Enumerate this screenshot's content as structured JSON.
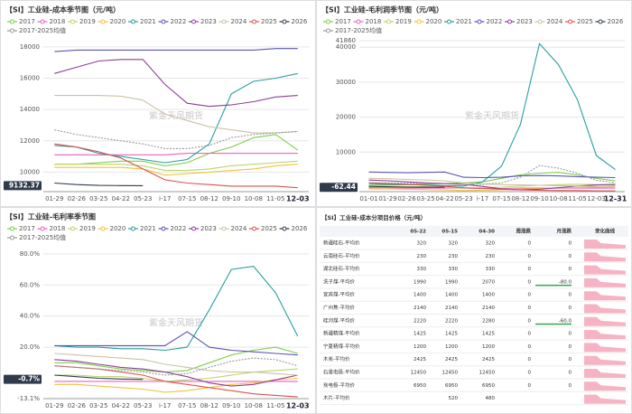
{
  "chart_data": [
    {
      "type": "line",
      "title": "【SI】工业硅-成本季节图（元/吨）",
      "watermark": "紫金天风期货",
      "categories": [
        "01-29",
        "02-26",
        "03-25",
        "04-22",
        "05-23",
        "i-17",
        "07-15",
        "08-12",
        "09-10",
        "10-08",
        "11-05",
        "12-03"
      ],
      "ylim": [
        8750,
        18400
      ],
      "yticks": [
        10000,
        12000,
        14000,
        16000,
        18000
      ],
      "grid": true,
      "current": {
        "value": 9132.37,
        "label": "9132.37"
      },
      "series": [
        {
          "name": "2017",
          "color": "#7ccf4a",
          "values": [
            10500,
            10500,
            10600,
            10700,
            10700,
            10400,
            10600,
            11200,
            11600,
            12200,
            12400,
            11400
          ]
        },
        {
          "name": "2018",
          "color": "#ee5fc0",
          "values": [
            11100,
            11100,
            11100,
            11100,
            11100,
            11100,
            11200,
            11200,
            11200,
            11200,
            11200,
            11200
          ]
        },
        {
          "name": "2019",
          "color": "#b9d66a",
          "values": [
            10500,
            10500,
            10500,
            10500,
            10400,
            10100,
            10100,
            10200,
            10400,
            10500,
            10600,
            10700
          ]
        },
        {
          "name": "2020",
          "color": "#f2c23c",
          "values": [
            10300,
            10300,
            10300,
            10300,
            10200,
            9800,
            9900,
            10000,
            10100,
            10200,
            10400,
            10500
          ]
        },
        {
          "name": "2021",
          "color": "#2a9d9f",
          "values": [
            11700,
            11600,
            11200,
            11000,
            10800,
            10600,
            10800,
            11800,
            15000,
            15800,
            16000,
            16300
          ]
        },
        {
          "name": "2022",
          "color": "#5a55b5",
          "values": [
            17700,
            17800,
            17800,
            17800,
            17800,
            17800,
            17800,
            17800,
            17800,
            17800,
            17900,
            17900
          ]
        },
        {
          "name": "2023",
          "color": "#8a3f96",
          "values": [
            16300,
            16700,
            17100,
            17200,
            17200,
            15600,
            14400,
            14200,
            14300,
            14500,
            14800,
            14900
          ]
        },
        {
          "name": "2024",
          "color": "#cbc3a3",
          "values": [
            14900,
            14900,
            14900,
            14850,
            14600,
            13700,
            13300,
            12900,
            12700,
            12500,
            12500,
            12600
          ]
        },
        {
          "name": "2025",
          "color": "#d9534f",
          "values": [
            11800,
            11600,
            11300,
            10900,
            10200,
            9500,
            9300,
            9200,
            9100,
            9100,
            9100,
            9000
          ]
        },
        {
          "name": "2026",
          "color": "#2f3b4c",
          "values": [
            9300,
            9200,
            9150,
            9140,
            9132.37,
            null,
            null,
            null,
            null,
            null,
            null,
            null
          ]
        },
        {
          "name": "2017-2025均值",
          "color": "#9a9a9a",
          "dashed": true,
          "values": [
            12700,
            12400,
            12200,
            12000,
            11800,
            11500,
            11500,
            11700,
            12200,
            12400,
            12500,
            12600
          ]
        }
      ]
    },
    {
      "type": "line",
      "title": "【SI】工业硅-毛利润季节图（元/吨）",
      "watermark": "紫金天风期货",
      "categories": [
        "01-01",
        "01-29",
        "02-26",
        "03-25",
        "04-22",
        "05-23",
        "i-17",
        "07-15",
        "08-12",
        "09-10",
        "10-08",
        "11-05",
        "12-03",
        "12-31"
      ],
      "ylim": [
        -1300,
        41860
      ],
      "yticks": [
        10000,
        20000,
        30000,
        40000,
        41860
      ],
      "grid": true,
      "current": {
        "value": -62.44,
        "label": "-62.44"
      },
      "series": [
        {
          "name": "2017",
          "color": "#7ccf4a",
          "values": [
            500,
            600,
            700,
            900,
            1000,
            1200,
            1500,
            2500,
            3500,
            4000,
            4200,
            3500,
            2500,
            1800
          ]
        },
        {
          "name": "2018",
          "color": "#ee5fc0",
          "values": [
            -200,
            -200,
            -300,
            -300,
            -300,
            -300,
            -400,
            -400,
            -300,
            -300,
            -300,
            -300,
            -300,
            -300
          ]
        },
        {
          "name": "2019",
          "color": "#b9d66a",
          "values": [
            200,
            200,
            100,
            100,
            -100,
            -300,
            -200,
            0,
            300,
            500,
            700,
            800,
            700,
            500
          ]
        },
        {
          "name": "2020",
          "color": "#f2c23c",
          "values": [
            -500,
            -500,
            -600,
            -700,
            -800,
            -1000,
            -900,
            -800,
            -600,
            -400,
            -200,
            -100,
            0,
            100
          ]
        },
        {
          "name": "2021",
          "color": "#2a9d9f",
          "values": [
            1000,
            800,
            700,
            600,
            400,
            300,
            1500,
            6000,
            18000,
            41000,
            35000,
            25000,
            9000,
            5000
          ]
        },
        {
          "name": "2022",
          "color": "#5a55b5",
          "values": [
            4300,
            4200,
            4100,
            4200,
            4300,
            2800,
            2700,
            2800,
            3200,
            3300,
            3200,
            3000,
            2800,
            2700
          ]
        },
        {
          "name": "2023",
          "color": "#8a3f96",
          "values": [
            2000,
            1800,
            1500,
            1200,
            1000,
            800,
            200,
            -500,
            -800,
            -600,
            -200,
            300,
            600,
            800
          ]
        },
        {
          "name": "2024",
          "color": "#cbc3a3",
          "values": [
            2500,
            2400,
            2200,
            2000,
            1800,
            1200,
            900,
            700,
            600,
            500,
            400,
            300,
            200,
            200
          ]
        },
        {
          "name": "2025",
          "color": "#d9534f",
          "values": [
            1200,
            1000,
            800,
            500,
            200,
            -200,
            -400,
            -600,
            -800,
            -900,
            -1000,
            -1000,
            -1100,
            -1100
          ]
        },
        {
          "name": "2026",
          "color": "#2f3b4c",
          "values": [
            200,
            100,
            0,
            -30,
            -62.44,
            null,
            null,
            null,
            null,
            null,
            null,
            null,
            null,
            null
          ]
        },
        {
          "name": "2017-2025均值",
          "color": "#9a9a9a",
          "dashed": true,
          "values": [
            1300,
            1200,
            1100,
            1000,
            900,
            700,
            800,
            1200,
            2800,
            6200,
            5400,
            4000,
            1900,
            1300
          ]
        }
      ]
    },
    {
      "type": "line",
      "title": "【SI】工业硅-毛利率季节图",
      "watermark": "紫金天风期货",
      "categories": [
        "01-29",
        "02-26",
        "03-25",
        "04-22",
        "05-23",
        "i-17",
        "07-15",
        "08-12",
        "09-10",
        "10-08",
        "11-05",
        "12-03"
      ],
      "ylim": [
        -13.1,
        84
      ],
      "yticks": [
        {
          "value": -13.1,
          "label": "-13.1%"
        },
        {
          "value": 20,
          "label": "20.0%"
        },
        {
          "value": 40,
          "label": "40.0%"
        },
        {
          "value": 60,
          "label": "60.0%"
        },
        {
          "value": 80,
          "label": "80.0%"
        }
      ],
      "grid": true,
      "current": {
        "value": -0.7,
        "label": "-0.7%"
      },
      "series": [
        {
          "name": "2017",
          "color": "#7ccf4a",
          "values": [
            10,
            10,
            8,
            6,
            5,
            4,
            5,
            10,
            15,
            18,
            20,
            16
          ]
        },
        {
          "name": "2018",
          "color": "#ee5fc0",
          "values": [
            -2,
            -2,
            -2,
            -2,
            -2,
            -2,
            -2,
            -2,
            -2,
            -2,
            -2,
            -2
          ]
        },
        {
          "name": "2019",
          "color": "#b9d66a",
          "values": [
            2,
            2,
            1,
            1,
            0,
            -2,
            -1,
            0,
            2,
            4,
            5,
            6
          ]
        },
        {
          "name": "2020",
          "color": "#f2c23c",
          "values": [
            -4,
            -4,
            -5,
            -6,
            -7,
            -9,
            -8,
            -6,
            -4,
            -3,
            -1,
            0
          ]
        },
        {
          "name": "2021",
          "color": "#2a9d9f",
          "values": [
            21,
            20,
            20,
            19,
            19,
            18,
            20,
            44,
            70,
            72,
            55,
            27
          ]
        },
        {
          "name": "2022",
          "color": "#5a55b5",
          "values": [
            21,
            21,
            21,
            21,
            21,
            21,
            30,
            20,
            18,
            17,
            16,
            15
          ]
        },
        {
          "name": "2023",
          "color": "#8a3f96",
          "values": [
            12,
            11,
            9,
            7,
            6,
            4,
            1,
            -3,
            -5,
            -4,
            -1,
            2
          ]
        },
        {
          "name": "2024",
          "color": "#cbc3a3",
          "values": [
            16,
            15,
            14,
            13,
            12,
            9,
            7,
            5,
            4,
            4,
            3,
            2
          ]
        },
        {
          "name": "2025",
          "color": "#d9534f",
          "values": [
            8,
            7,
            6,
            4,
            2,
            -2,
            -4,
            -6,
            -8,
            -10,
            -11,
            -12
          ]
        },
        {
          "name": "2026",
          "color": "#2f3b4c",
          "values": [
            2,
            1,
            0,
            -0.5,
            -0.7,
            null,
            null,
            null,
            null,
            null,
            null,
            null
          ]
        },
        {
          "name": "2017-2025均值",
          "color": "#9a9a9a",
          "dashed": true,
          "values": [
            8,
            7,
            6,
            5,
            4,
            2,
            3,
            7,
            11,
            13,
            12,
            8
          ]
        }
      ]
    }
  ],
  "table": {
    "title": "【SI】工业硅-成本分项目价格（元/吨）",
    "columns": [
      "05-22",
      "05-15",
      "04-30",
      "周涨跌",
      "月涨跌",
      "变化曲线"
    ],
    "rows": [
      {
        "name": "新疆硅石-平均价",
        "cells": [
          "320",
          "320",
          "320",
          "0",
          "0"
        ]
      },
      {
        "name": "云南硅石-平均价",
        "cells": [
          "230",
          "230",
          "230",
          "0",
          "0"
        ]
      },
      {
        "name": "湖北硅石-平均价",
        "cells": [
          "330",
          "330",
          "330",
          "0",
          "0"
        ]
      },
      {
        "name": "洗子煤-平均价",
        "cells": [
          "1990",
          "1990",
          "2070",
          "0",
          "-80.0"
        ]
      },
      {
        "name": "宜宾煤-平均价",
        "cells": [
          "1400",
          "1400",
          "1400",
          "0",
          "0"
        ]
      },
      {
        "name": "广州焦-平均价",
        "cells": [
          "2140",
          "2140",
          "2140",
          "0",
          "0"
        ]
      },
      {
        "name": "硅河煤-平均价",
        "cells": [
          "2220",
          "2220",
          "2280",
          "0",
          "-60.0"
        ]
      },
      {
        "name": "新疆精煤-平均价",
        "cells": [
          "1425",
          "1425",
          "1425",
          "0",
          "0"
        ]
      },
      {
        "name": "宁夏精煤-平均价",
        "cells": [
          "1200",
          "1200",
          "1200",
          "0",
          "0"
        ]
      },
      {
        "name": "木炭-平均价",
        "cells": [
          "2425",
          "2425",
          "2425",
          "0",
          "0"
        ]
      },
      {
        "name": "石墨电极-平均价",
        "cells": [
          "12450",
          "12450",
          "12450",
          "0",
          "0"
        ]
      },
      {
        "name": "炭电极-平均价",
        "cells": [
          "6950",
          "6950",
          "6950",
          "0",
          "0"
        ]
      },
      {
        "name": "木片-平均价",
        "cells": [
          null,
          "520",
          "480",
          null,
          null
        ]
      }
    ]
  }
}
